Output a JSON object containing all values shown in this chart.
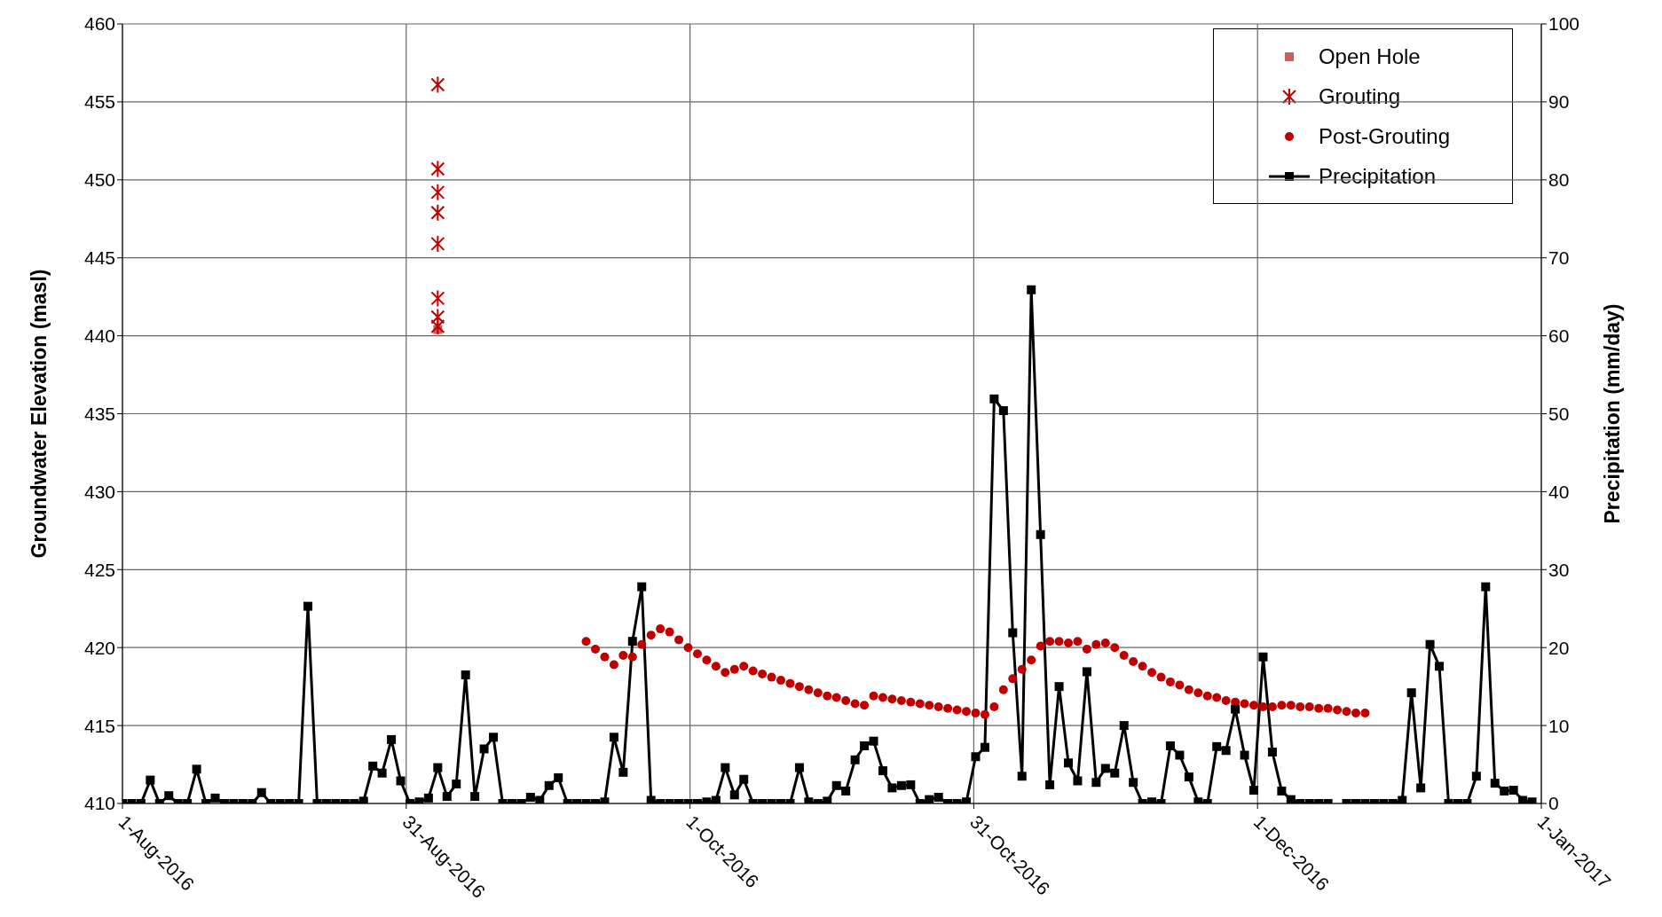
{
  "chart_data": {
    "type": "scatter",
    "xlabel": null,
    "ylabel": "Groundwater Elevation (masl)",
    "y2label": "Precipitation (mm/day)",
    "xlim": [
      "2016-08-01",
      "2017-01-01"
    ],
    "xticks": [
      {
        "value": "2016-08-01",
        "label": "1-Aug-2016"
      },
      {
        "value": "2016-08-31T14:24",
        "label": "31-Aug-2016"
      },
      {
        "value": "2016-10-01T04:48",
        "label": "1-Oct-2016"
      },
      {
        "value": "2016-10-31T19:12",
        "label": "31-Oct-2016"
      },
      {
        "value": "2016-12-01T09:36",
        "label": "1-Dec-2016"
      },
      {
        "value": "2017-01-01",
        "label": "1-Jan-2017"
      }
    ],
    "ylim": [
      410,
      460
    ],
    "yticks": [
      410,
      415,
      420,
      425,
      430,
      435,
      440,
      445,
      450,
      455,
      460
    ],
    "y2lim": [
      0,
      100
    ],
    "y2ticks": [
      0,
      10,
      20,
      30,
      40,
      50,
      60,
      70,
      80,
      90,
      100
    ],
    "grid": true,
    "legend": "top right",
    "series": [
      {
        "name": "Open Hole",
        "marker": "square",
        "color": "#c0504d",
        "x": [
          "2016-09-04"
        ],
        "values": [
          440.4
        ]
      },
      {
        "name": "Grouting",
        "marker": "cross",
        "color": "#c00000",
        "x": [
          "2016-09-04",
          "2016-09-04",
          "2016-09-04",
          "2016-09-04",
          "2016-09-04",
          "2016-09-04",
          "2016-09-04",
          "2016-09-04"
        ],
        "values": [
          456.1,
          450.7,
          449.2,
          447.9,
          445.9,
          442.4,
          441.2,
          440.6
        ]
      },
      {
        "name": "Post-Grouting",
        "marker": "circle",
        "color": "#c00000",
        "x": [
          "2016-09-20",
          "2016-09-21",
          "2016-09-22",
          "2016-09-23",
          "2016-09-24",
          "2016-09-25",
          "2016-09-26",
          "2016-09-27",
          "2016-09-28",
          "2016-09-29",
          "2016-09-30",
          "2016-10-01",
          "2016-10-02",
          "2016-10-03",
          "2016-10-04",
          "2016-10-05",
          "2016-10-06",
          "2016-10-07",
          "2016-10-08",
          "2016-10-09",
          "2016-10-10",
          "2016-10-11",
          "2016-10-12",
          "2016-10-13",
          "2016-10-14",
          "2016-10-15",
          "2016-10-16",
          "2016-10-17",
          "2016-10-18",
          "2016-10-19",
          "2016-10-20",
          "2016-10-21",
          "2016-10-22",
          "2016-10-23",
          "2016-10-24",
          "2016-10-25",
          "2016-10-26",
          "2016-10-27",
          "2016-10-28",
          "2016-10-29",
          "2016-10-30",
          "2016-10-31",
          "2016-11-01",
          "2016-11-02",
          "2016-11-03",
          "2016-11-04",
          "2016-11-05",
          "2016-11-06",
          "2016-11-07",
          "2016-11-08",
          "2016-11-09",
          "2016-11-10",
          "2016-11-11",
          "2016-11-12",
          "2016-11-13",
          "2016-11-14",
          "2016-11-15",
          "2016-11-16",
          "2016-11-17",
          "2016-11-18",
          "2016-11-19",
          "2016-11-20",
          "2016-11-21",
          "2016-11-22",
          "2016-11-23",
          "2016-11-24",
          "2016-11-25",
          "2016-11-26",
          "2016-11-27",
          "2016-11-28",
          "2016-11-29",
          "2016-11-30",
          "2016-12-01",
          "2016-12-02",
          "2016-12-03",
          "2016-12-04",
          "2016-12-05",
          "2016-12-06",
          "2016-12-07",
          "2016-12-08",
          "2016-12-09",
          "2016-12-10",
          "2016-12-11",
          "2016-12-12",
          "2016-12-13"
        ],
        "values": [
          420.4,
          419.9,
          419.4,
          418.9,
          419.5,
          419.4,
          420.2,
          420.8,
          421.2,
          421.0,
          420.5,
          420.0,
          419.6,
          419.2,
          418.8,
          418.4,
          418.6,
          418.8,
          418.5,
          418.3,
          418.1,
          417.9,
          417.7,
          417.5,
          417.3,
          417.1,
          416.9,
          416.8,
          416.6,
          416.4,
          416.3,
          416.9,
          416.8,
          416.7,
          416.6,
          416.5,
          416.4,
          416.3,
          416.2,
          416.1,
          416.0,
          415.9,
          415.8,
          415.7,
          416.2,
          417.3,
          418.0,
          418.6,
          419.2,
          420.1,
          420.4,
          420.4,
          420.3,
          420.4,
          419.9,
          420.2,
          420.3,
          420.0,
          419.5,
          419.1,
          418.8,
          418.4,
          418.1,
          417.8,
          417.6,
          417.3,
          417.1,
          416.9,
          416.8,
          416.6,
          416.5,
          416.4,
          416.3,
          416.2,
          416.2,
          416.3,
          416.3,
          416.2,
          416.2,
          416.1,
          416.1,
          416.0,
          415.9,
          415.8,
          415.8
        ]
      },
      {
        "name": "Precipitation",
        "type": "line",
        "axis": "y2",
        "marker": "square",
        "line_style": "solid",
        "color": "#000000",
        "x": [
          "2016-08-01",
          "2016-08-02",
          "2016-08-03",
          "2016-08-04",
          "2016-08-05",
          "2016-08-06",
          "2016-08-07",
          "2016-08-08",
          "2016-08-09",
          "2016-08-10",
          "2016-08-11",
          "2016-08-12",
          "2016-08-13",
          "2016-08-14",
          "2016-08-15",
          "2016-08-16",
          "2016-08-17",
          "2016-08-18",
          "2016-08-19",
          "2016-08-20",
          "2016-08-21",
          "2016-08-22",
          "2016-08-23",
          "2016-08-24",
          "2016-08-25",
          "2016-08-26",
          "2016-08-27",
          "2016-08-28",
          "2016-08-29",
          "2016-08-30",
          "2016-08-31",
          "2016-09-01",
          "2016-09-02",
          "2016-09-03",
          "2016-09-04",
          "2016-09-05",
          "2016-09-06",
          "2016-09-07",
          "2016-09-08",
          "2016-09-09",
          "2016-09-10",
          "2016-09-11",
          "2016-09-12",
          "2016-09-13",
          "2016-09-14",
          "2016-09-15",
          "2016-09-16",
          "2016-09-17",
          "2016-09-18",
          "2016-09-19",
          "2016-09-20",
          "2016-09-21",
          "2016-09-22",
          "2016-09-23",
          "2016-09-24",
          "2016-09-25",
          "2016-09-26",
          "2016-09-27",
          "2016-09-28",
          "2016-09-29",
          "2016-09-30",
          "2016-10-01",
          "2016-10-02",
          "2016-10-03",
          "2016-10-04",
          "2016-10-05",
          "2016-10-06",
          "2016-10-07",
          "2016-10-08",
          "2016-10-09",
          "2016-10-10",
          "2016-10-11",
          "2016-10-12",
          "2016-10-13",
          "2016-10-14",
          "2016-10-15",
          "2016-10-16",
          "2016-10-17",
          "2016-10-18",
          "2016-10-19",
          "2016-10-20",
          "2016-10-21",
          "2016-10-22",
          "2016-10-23",
          "2016-10-24",
          "2016-10-25",
          "2016-10-26",
          "2016-10-27",
          "2016-10-28",
          "2016-10-29",
          "2016-10-30",
          "2016-10-31",
          "2016-11-01",
          "2016-11-02",
          "2016-11-03",
          "2016-11-04",
          "2016-11-05",
          "2016-11-06",
          "2016-11-07",
          "2016-11-08",
          "2016-11-09",
          "2016-11-10",
          "2016-11-11",
          "2016-11-12",
          "2016-11-13",
          "2016-11-14",
          "2016-11-15",
          "2016-11-16",
          "2016-11-17",
          "2016-11-18",
          "2016-11-19",
          "2016-11-20",
          "2016-11-21",
          "2016-11-22",
          "2016-11-23",
          "2016-11-24",
          "2016-11-25",
          "2016-11-26",
          "2016-11-27",
          "2016-11-28",
          "2016-11-29",
          "2016-11-30",
          "2016-12-01",
          "2016-12-02",
          "2016-12-03",
          "2016-12-04",
          "2016-12-05",
          "2016-12-06",
          "2016-12-07",
          "2016-12-08",
          "2016-12-09",
          "2016-12-10",
          "2016-12-11",
          "2016-12-12",
          "2016-12-13",
          "2016-12-14",
          "2016-12-15",
          "2016-12-16",
          "2016-12-17",
          "2016-12-18",
          "2016-12-19",
          "2016-12-20",
          "2016-12-21",
          "2016-12-22",
          "2016-12-23",
          "2016-12-24",
          "2016-12-25",
          "2016-12-26",
          "2016-12-27",
          "2016-12-28",
          "2016-12-29",
          "2016-12-30",
          "2016-12-31"
        ],
        "values": [
          0,
          0,
          0,
          3.0,
          0,
          1.0,
          0,
          0,
          4.4,
          0,
          0.7,
          0,
          0,
          0,
          0,
          1.4,
          0,
          0,
          0,
          0,
          25.3,
          0,
          0,
          0,
          0,
          0,
          0.3,
          4.8,
          3.9,
          8.2,
          2.9,
          0,
          0.2,
          0.7,
          4.6,
          0.9,
          2.5,
          16.5,
          0.9,
          7.0,
          8.5,
          0,
          0,
          0,
          0.8,
          0.4,
          2.3,
          3.3,
          0,
          0,
          0,
          0,
          0.2,
          8.5,
          4.0,
          20.8,
          27.8,
          0.4,
          0,
          0,
          0,
          0,
          0,
          0.2,
          0.4,
          4.6,
          1.1,
          3.1,
          0,
          0,
          0,
          0,
          0,
          4.6,
          0.2,
          0,
          0.3,
          2.3,
          1.6,
          5.6,
          7.4,
          8.0,
          4.2,
          2.0,
          2.3,
          2.4,
          0,
          0.5,
          0.8,
          0,
          0,
          0.2,
          6.0,
          7.2,
          51.9,
          50.4,
          21.9,
          3.5,
          65.9,
          34.5,
          2.4,
          15.0,
          5.2,
          2.9,
          16.9,
          2.7,
          4.5,
          3.9,
          10.0,
          2.7,
          0,
          0.2,
          0,
          7.4,
          6.2,
          3.4,
          0.2,
          0,
          7.3,
          6.8,
          12.1,
          6.2,
          1.7,
          18.8,
          6.6,
          1.6,
          0.5,
          0,
          0,
          0,
          0,
          null,
          0,
          0,
          0,
          0,
          0,
          0,
          0.4,
          14.2,
          2.0,
          20.4,
          17.6,
          0,
          0,
          0,
          3.5,
          27.8,
          2.6,
          1.6,
          1.7,
          0.4,
          0.2
        ]
      }
    ]
  }
}
